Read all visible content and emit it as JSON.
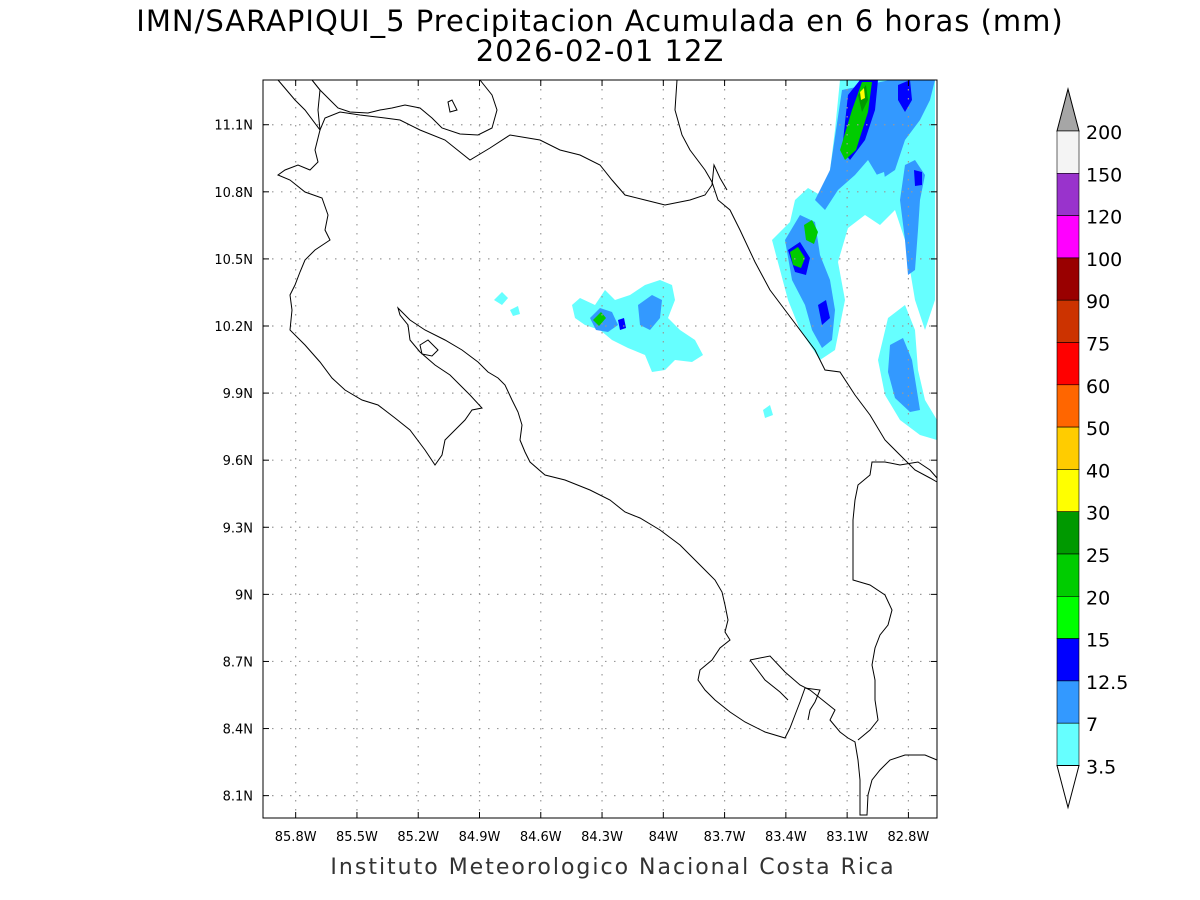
{
  "title_line1": "IMN/SARAPIQUI_5 Precipitacion Acumulada en 6 horas (mm)",
  "title_line2": "2026-02-01 12Z",
  "credit": "Instituto Meteorologico Nacional Costa Rica",
  "map": {
    "lon_ticks": [
      "85.8W",
      "85.5W",
      "85.2W",
      "84.9W",
      "84.6W",
      "84.3W",
      "84W",
      "83.7W",
      "83.4W",
      "83.1W",
      "82.8W"
    ],
    "lat_ticks": [
      "11.1N",
      "10.8N",
      "10.5N",
      "10.2N",
      "9.9N",
      "9.6N",
      "9.3N",
      "9N",
      "8.7N",
      "8.4N",
      "8.1N"
    ],
    "lon_values": [
      -85.8,
      -85.5,
      -85.2,
      -84.9,
      -84.6,
      -84.3,
      -84.0,
      -83.7,
      -83.4,
      -83.1,
      -82.8
    ],
    "lat_values": [
      11.1,
      10.8,
      10.5,
      10.2,
      9.9,
      9.6,
      9.3,
      9.0,
      8.7,
      8.4,
      8.1
    ],
    "extent": {
      "lon_min": -85.96,
      "lon_max": -82.66,
      "lat_min": 8.0,
      "lat_max": 11.3
    },
    "grid": "dotted"
  },
  "colorbar": {
    "labels": [
      "200",
      "150",
      "120",
      "100",
      "90",
      "75",
      "60",
      "50",
      "40",
      "30",
      "25",
      "20",
      "15",
      "12.5",
      "7",
      "3.5"
    ],
    "colors": [
      "#f4f4f4",
      "#9933cc",
      "#ff00ff",
      "#990000",
      "#cc3300",
      "#ff0000",
      "#ff6600",
      "#ffcc00",
      "#ffff00",
      "#009900",
      "#00cc00",
      "#00ff00",
      "#0000ff",
      "#3399ff",
      "#66ffff"
    ],
    "over_color": "#a6a6a6",
    "under_color": "#ffffff"
  }
}
